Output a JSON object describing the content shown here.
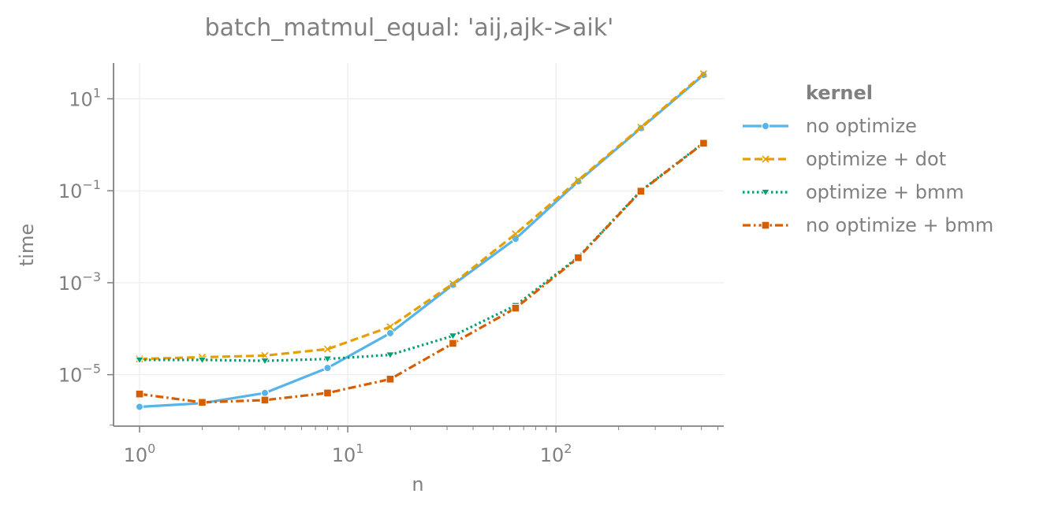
{
  "chart_data": {
    "type": "line",
    "title": "batch_matmul_equal: 'aij,ajk->aik'",
    "xlabel": "n",
    "ylabel": "time",
    "xscale": "log",
    "yscale": "log",
    "xlim": [
      0.75,
      640
    ],
    "ylim": [
      7.6e-07,
      60
    ],
    "x_ticks": [
      {
        "base": "10",
        "exp": "0",
        "value": 1
      },
      {
        "base": "10",
        "exp": "1",
        "value": 10
      },
      {
        "base": "10",
        "exp": "2",
        "value": 100
      }
    ],
    "y_ticks": [
      {
        "base": "10",
        "exp": "−5",
        "value": 1e-05
      },
      {
        "base": "10",
        "exp": "−3",
        "value": 0.001
      },
      {
        "base": "10",
        "exp": "−1",
        "value": 0.1
      },
      {
        "base": "10",
        "exp": "1",
        "value": 10
      }
    ],
    "grid": true,
    "legend": {
      "title": "kernel",
      "placement": "right"
    },
    "x": [
      1,
      2,
      4,
      8,
      16,
      32,
      64,
      128,
      256,
      512
    ],
    "series": [
      {
        "name": "no optimize",
        "color": "#56b4e9",
        "dash": "solid",
        "marker": "circle",
        "values": [
          2e-06,
          2.4e-06,
          4e-06,
          1.4e-05,
          8e-05,
          0.0009,
          0.009,
          0.16,
          2.3,
          33
        ]
      },
      {
        "name": "optimize + dot",
        "color": "#e69f00",
        "dash": "dashed",
        "marker": "x",
        "values": [
          2.2e-05,
          2.4e-05,
          2.6e-05,
          3.6e-05,
          0.00011,
          0.00095,
          0.0115,
          0.17,
          2.4,
          35
        ]
      },
      {
        "name": "optimize + bmm",
        "color": "#009e73",
        "dash": "dotted",
        "marker": "triangle-down",
        "values": [
          2.1e-05,
          2.1e-05,
          2e-05,
          2.2e-05,
          2.7e-05,
          7e-05,
          0.00032,
          0.0036,
          0.1,
          1.1
        ]
      },
      {
        "name": "no optimize + bmm",
        "color": "#d55e00",
        "dash": "dashdot",
        "marker": "square",
        "values": [
          3.8e-06,
          2.5e-06,
          2.8e-06,
          4e-06,
          8e-06,
          4.8e-05,
          0.00028,
          0.0035,
          0.098,
          1.08
        ]
      }
    ]
  }
}
